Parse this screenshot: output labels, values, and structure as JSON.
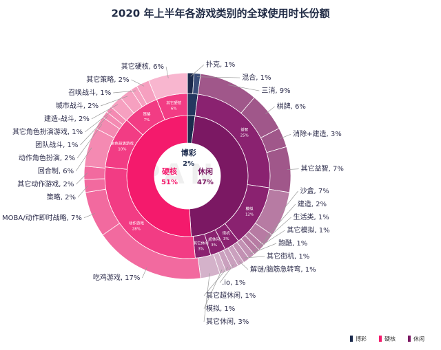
{
  "chart_data": {
    "type": "sunburst",
    "title": "2020 年上半年各游戏类别的全球使用时长份额",
    "watermark": "APPANNIE",
    "inner": {
      "names": [
        "博彩",
        "休闲",
        "硬核"
      ],
      "values": [
        2,
        47,
        51
      ],
      "value_labels": [
        "2%",
        "47%",
        "51%"
      ],
      "colors": [
        "#1c2b4d",
        "#7b1863",
        "#f41a6c"
      ]
    },
    "middle": {
      "names": [
        null,
        "益智",
        "模拟",
        "街机",
        "超休闲",
        "其它休闲",
        "动作游戏",
        "角色扮演游戏",
        "策略",
        "其它硬核"
      ],
      "values": [
        2,
        25,
        12,
        3,
        3,
        3,
        28,
        10,
        7,
        6
      ],
      "value_labels": [
        null,
        "25%",
        "12%",
        "3%",
        "3%",
        "3%",
        "28%",
        "10%",
        "7%",
        "6%"
      ],
      "colors": [
        "#24375f",
        "#8a2270",
        "#8a2270",
        "#8a2270",
        "#8a2270",
        "#8a2270",
        "#f23c84",
        "#f23c84",
        "#f23c84",
        "#f23c84"
      ]
    },
    "outer": {
      "labels": [
        "扑克, 1%",
        "混合, 1%",
        "三消, 9%",
        "棋牌, 6%",
        "消除+建造, 3%",
        "其它益智, 7%",
        "沙盒, 7%",
        "建造, 2%",
        "生活类, 1%",
        "其它模拟, 1%",
        "跑酷, 1%",
        "其它街机, 1%",
        "解谜/脑筋急转弯, 1%",
        ".io, 1%",
        "其它超休闲, 1%",
        "模拟, 1%",
        "其它休闲, 3%",
        "吃鸡游戏, 17%",
        "MOBA/动作即时战略, 7%",
        "策略, 2%",
        "其它动作游戏, 2%",
        "回合制, 6%",
        "动作角色扮演, 2%",
        "团队战斗, 1%",
        "其它角色扮演游戏, 1%",
        "建造-战斗, 2%",
        "城市战斗, 2%",
        "召唤战斗, 1%",
        "其它策略, 2%",
        "其它硬核, 6%"
      ],
      "values": [
        1,
        1,
        9,
        6,
        3,
        7,
        7,
        2,
        1,
        1,
        1,
        1,
        1,
        1,
        1,
        1,
        3,
        17,
        7,
        2,
        2,
        6,
        2,
        1,
        1,
        2,
        2,
        1,
        2,
        6
      ],
      "colors": [
        "#1c2b4d",
        "#3a4d78",
        "#a0578a",
        "#a0578a",
        "#a0578a",
        "#a0578a",
        "#b77ba3",
        "#b77ba3",
        "#b77ba3",
        "#b77ba3",
        "#c291b3",
        "#c291b3",
        "#caa0be",
        "#caa0be",
        "#caa0be",
        "#d4b2ca",
        "#d4b2ca",
        "#f26a9f",
        "#f26a9f",
        "#f26a9f",
        "#f26a9f",
        "#f48ab2",
        "#f48ab2",
        "#f48ab2",
        "#f48ab2",
        "#f6a0c0",
        "#f6a0c0",
        "#f6a0c0",
        "#f6a0c0",
        "#f8b6cf"
      ]
    }
  }
}
